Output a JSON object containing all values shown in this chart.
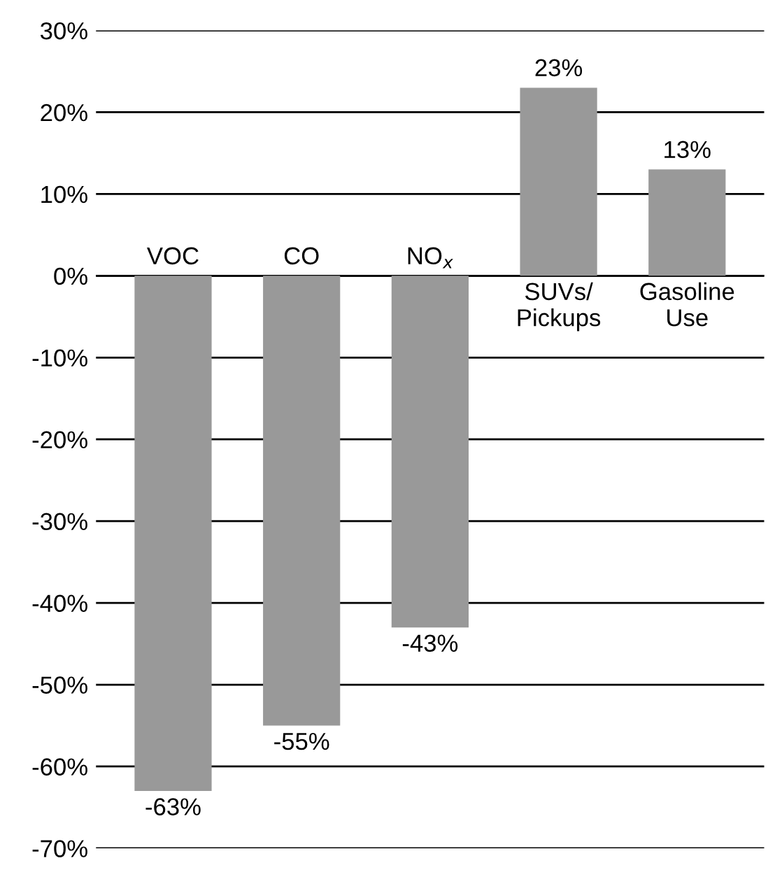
{
  "chart_data": {
    "type": "bar",
    "categories": [
      "VOC",
      "CO",
      "NO$_{x}$",
      "SUVs/\nPickups",
      "Gasoline\nUse"
    ],
    "values": [
      -63,
      -55,
      -43,
      23,
      13
    ],
    "value_labels": [
      "-63%",
      "-55%",
      "-43%",
      "23%",
      "13%"
    ],
    "color": "#999999",
    "ylim": [
      -70,
      30
    ],
    "yticks": [
      {
        "value": -70,
        "label": "-70%"
      },
      {
        "value": -60,
        "label": "-60%"
      },
      {
        "value": -50,
        "label": "-50%"
      },
      {
        "value": -40,
        "label": "-40%"
      },
      {
        "value": -30,
        "label": "-30%"
      },
      {
        "value": -20,
        "label": "-20%"
      },
      {
        "value": -10,
        "label": "-10%"
      },
      {
        "value": 0,
        "label": "0%"
      },
      {
        "value": 10,
        "label": "10%"
      },
      {
        "value": 20,
        "label": "20%"
      },
      {
        "value": 30,
        "label": "30%"
      }
    ],
    "grid": "y"
  }
}
